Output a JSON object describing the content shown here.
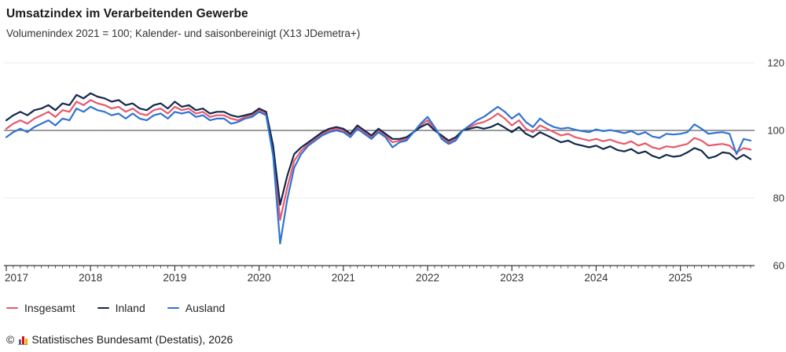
{
  "chart_data": {
    "type": "line",
    "title": "Umsatzindex im Verarbeitenden Gewerbe",
    "subtitle": "Volumenindex 2021 = 100; Kalender- und saisonbereinigt (X13 JDemetra+)",
    "x_frequency": "monthly",
    "x_start": "2017-01",
    "x_end": "2025-11",
    "x_tick_labels": [
      "2017",
      "2018",
      "2019",
      "2020",
      "2021",
      "2022",
      "2023",
      "2024",
      "2025"
    ],
    "y_ticks": [
      60,
      80,
      100,
      120
    ],
    "ylim": [
      60,
      124
    ],
    "baseline_value": 100,
    "grid": "horizontal",
    "legend_position": "bottom-left",
    "colors": {
      "grid_light": "#ededed",
      "baseline": "#606060",
      "axis": "#3a3a3a",
      "tick_text": "#333333"
    },
    "series": [
      {
        "name": "Insgesamt",
        "color": "#e65a6d",
        "values": [
          100.5,
          102.0,
          103.0,
          102.0,
          103.5,
          104.5,
          105.5,
          104.0,
          106.0,
          105.5,
          108.5,
          107.5,
          109.0,
          108.0,
          107.5,
          106.5,
          107.0,
          105.5,
          106.5,
          105.0,
          104.5,
          106.0,
          106.5,
          105.0,
          107.0,
          106.0,
          106.5,
          105.0,
          105.5,
          104.0,
          104.5,
          104.5,
          103.5,
          103.0,
          104.0,
          104.5,
          106.0,
          105.0,
          94.0,
          73.5,
          83.0,
          91.0,
          94.0,
          96.0,
          97.5,
          99.0,
          100.0,
          100.5,
          100.0,
          98.5,
          101.0,
          99.5,
          98.0,
          100.0,
          98.5,
          96.5,
          97.0,
          97.5,
          99.5,
          101.5,
          103.0,
          100.5,
          98.0,
          96.5,
          97.5,
          100.0,
          101.0,
          102.0,
          102.5,
          103.5,
          105.0,
          103.5,
          101.5,
          103.0,
          100.5,
          99.5,
          101.5,
          100.5,
          99.5,
          98.5,
          99.0,
          98.0,
          97.5,
          97.0,
          97.5,
          96.8,
          97.3,
          96.5,
          96.0,
          96.8,
          95.5,
          96.2,
          95.0,
          94.5,
          95.3,
          95.0,
          95.5,
          96.0,
          97.8,
          97.0,
          95.5,
          95.8,
          96.0,
          95.5,
          93.5,
          94.8,
          94.3
        ]
      },
      {
        "name": "Inland",
        "color": "#14284b",
        "values": [
          103.0,
          104.5,
          105.5,
          104.5,
          106.0,
          106.5,
          107.5,
          106.0,
          108.0,
          107.5,
          110.5,
          109.5,
          111.0,
          110.0,
          109.5,
          108.5,
          109.0,
          107.5,
          108.0,
          106.5,
          106.0,
          107.5,
          108.0,
          106.5,
          108.5,
          107.0,
          107.5,
          106.0,
          106.5,
          105.0,
          105.5,
          105.5,
          104.5,
          104.0,
          104.5,
          105.0,
          106.5,
          105.5,
          95.5,
          78.0,
          86.5,
          93.0,
          95.0,
          96.5,
          98.0,
          99.5,
          100.5,
          101.0,
          100.5,
          99.0,
          101.5,
          100.0,
          98.5,
          100.5,
          99.0,
          97.5,
          97.5,
          98.0,
          99.5,
          101.0,
          102.0,
          100.0,
          98.5,
          97.0,
          98.0,
          100.0,
          100.5,
          101.0,
          100.5,
          101.0,
          102.0,
          100.8,
          99.5,
          101.0,
          99.0,
          98.0,
          99.5,
          98.5,
          97.5,
          96.5,
          97.0,
          96.0,
          95.5,
          95.0,
          95.5,
          94.5,
          95.3,
          94.2,
          93.8,
          94.5,
          93.2,
          93.8,
          92.5,
          91.8,
          92.8,
          92.2,
          92.5,
          93.5,
          94.8,
          94.0,
          91.8,
          92.3,
          93.5,
          93.2,
          91.5,
          92.8,
          91.5
        ]
      },
      {
        "name": "Ausland",
        "color": "#3173d3",
        "values": [
          98.0,
          99.5,
          100.5,
          99.5,
          101.0,
          102.0,
          103.0,
          101.5,
          103.5,
          103.0,
          106.5,
          105.5,
          107.0,
          106.0,
          105.5,
          104.5,
          105.0,
          103.5,
          105.0,
          103.5,
          103.0,
          104.5,
          105.0,
          103.5,
          105.5,
          105.0,
          105.5,
          104.0,
          104.5,
          103.0,
          103.5,
          103.5,
          102.0,
          102.5,
          103.5,
          104.0,
          105.5,
          104.5,
          92.5,
          66.5,
          79.5,
          89.0,
          93.0,
          95.5,
          97.0,
          98.5,
          99.5,
          100.0,
          99.5,
          98.0,
          100.5,
          99.0,
          97.5,
          99.5,
          98.0,
          95.0,
          96.5,
          97.0,
          99.5,
          102.0,
          104.0,
          101.0,
          97.5,
          96.0,
          97.0,
          100.0,
          101.5,
          103.0,
          104.0,
          105.5,
          107.0,
          105.5,
          103.5,
          105.0,
          102.5,
          101.0,
          103.5,
          102.0,
          101.0,
          100.5,
          100.8,
          100.2,
          99.8,
          99.5,
          100.3,
          99.8,
          100.1,
          99.7,
          99.2,
          99.8,
          98.8,
          99.5,
          98.2,
          97.8,
          99.0,
          98.8,
          99.0,
          99.5,
          101.8,
          100.5,
          99.0,
          99.3,
          99.5,
          99.0,
          93.0,
          97.5,
          97.0
        ]
      }
    ]
  },
  "header": {
    "menu_icon": "hamburger"
  },
  "footer": {
    "copyright": "©",
    "logo": "destatis-bar-chart-logo",
    "source": "Statistisches Bundesamt (Destatis), 2026"
  }
}
